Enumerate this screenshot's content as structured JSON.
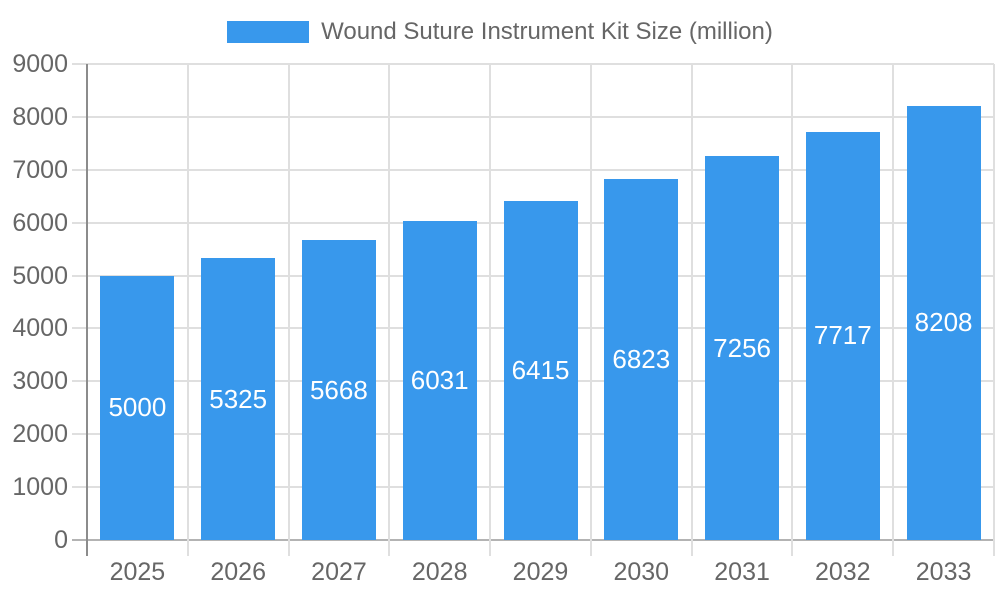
{
  "chart_data": {
    "type": "bar",
    "title": "Wound Suture Instrument Kit Size (million)",
    "categories": [
      "2025",
      "2026",
      "2027",
      "2028",
      "2029",
      "2030",
      "2031",
      "2032",
      "2033"
    ],
    "values": [
      5000,
      5325,
      5668,
      6031,
      6415,
      6823,
      7256,
      7717,
      8208
    ],
    "xlabel": "",
    "ylabel": "",
    "ylim": [
      0,
      9000
    ],
    "ytick_step": 1000,
    "grid": true,
    "legend_position": "top",
    "value_labels": "centered-inside-bars",
    "colors": {
      "bar": "#3898ec",
      "grid": "#dfdfdf",
      "x_axis_line": "#b3b3b3",
      "y_axis_line": "#8c8c8c",
      "axis_text": "#666666",
      "value_label": "#ffffff"
    }
  }
}
